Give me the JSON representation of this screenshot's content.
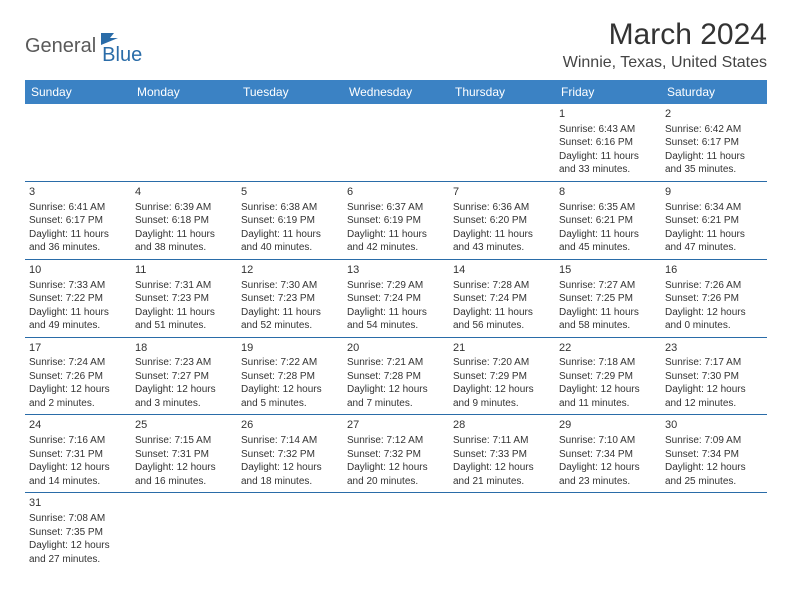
{
  "logo": {
    "general": "General",
    "blue": "Blue"
  },
  "title": "March 2024",
  "location": "Winnie, Texas, United States",
  "weekdays": [
    "Sunday",
    "Monday",
    "Tuesday",
    "Wednesday",
    "Thursday",
    "Friday",
    "Saturday"
  ],
  "colors": {
    "header_bg": "#3b82c4",
    "header_text": "#ffffff",
    "border": "#2a6ca8",
    "logo_blue": "#2a6ca8",
    "text": "#333333"
  },
  "grid": [
    [
      null,
      null,
      null,
      null,
      null,
      {
        "n": "1",
        "sr": "Sunrise: 6:43 AM",
        "ss": "Sunset: 6:16 PM",
        "d1": "Daylight: 11 hours",
        "d2": "and 33 minutes."
      },
      {
        "n": "2",
        "sr": "Sunrise: 6:42 AM",
        "ss": "Sunset: 6:17 PM",
        "d1": "Daylight: 11 hours",
        "d2": "and 35 minutes."
      }
    ],
    [
      {
        "n": "3",
        "sr": "Sunrise: 6:41 AM",
        "ss": "Sunset: 6:17 PM",
        "d1": "Daylight: 11 hours",
        "d2": "and 36 minutes."
      },
      {
        "n": "4",
        "sr": "Sunrise: 6:39 AM",
        "ss": "Sunset: 6:18 PM",
        "d1": "Daylight: 11 hours",
        "d2": "and 38 minutes."
      },
      {
        "n": "5",
        "sr": "Sunrise: 6:38 AM",
        "ss": "Sunset: 6:19 PM",
        "d1": "Daylight: 11 hours",
        "d2": "and 40 minutes."
      },
      {
        "n": "6",
        "sr": "Sunrise: 6:37 AM",
        "ss": "Sunset: 6:19 PM",
        "d1": "Daylight: 11 hours",
        "d2": "and 42 minutes."
      },
      {
        "n": "7",
        "sr": "Sunrise: 6:36 AM",
        "ss": "Sunset: 6:20 PM",
        "d1": "Daylight: 11 hours",
        "d2": "and 43 minutes."
      },
      {
        "n": "8",
        "sr": "Sunrise: 6:35 AM",
        "ss": "Sunset: 6:21 PM",
        "d1": "Daylight: 11 hours",
        "d2": "and 45 minutes."
      },
      {
        "n": "9",
        "sr": "Sunrise: 6:34 AM",
        "ss": "Sunset: 6:21 PM",
        "d1": "Daylight: 11 hours",
        "d2": "and 47 minutes."
      }
    ],
    [
      {
        "n": "10",
        "sr": "Sunrise: 7:33 AM",
        "ss": "Sunset: 7:22 PM",
        "d1": "Daylight: 11 hours",
        "d2": "and 49 minutes."
      },
      {
        "n": "11",
        "sr": "Sunrise: 7:31 AM",
        "ss": "Sunset: 7:23 PM",
        "d1": "Daylight: 11 hours",
        "d2": "and 51 minutes."
      },
      {
        "n": "12",
        "sr": "Sunrise: 7:30 AM",
        "ss": "Sunset: 7:23 PM",
        "d1": "Daylight: 11 hours",
        "d2": "and 52 minutes."
      },
      {
        "n": "13",
        "sr": "Sunrise: 7:29 AM",
        "ss": "Sunset: 7:24 PM",
        "d1": "Daylight: 11 hours",
        "d2": "and 54 minutes."
      },
      {
        "n": "14",
        "sr": "Sunrise: 7:28 AM",
        "ss": "Sunset: 7:24 PM",
        "d1": "Daylight: 11 hours",
        "d2": "and 56 minutes."
      },
      {
        "n": "15",
        "sr": "Sunrise: 7:27 AM",
        "ss": "Sunset: 7:25 PM",
        "d1": "Daylight: 11 hours",
        "d2": "and 58 minutes."
      },
      {
        "n": "16",
        "sr": "Sunrise: 7:26 AM",
        "ss": "Sunset: 7:26 PM",
        "d1": "Daylight: 12 hours",
        "d2": "and 0 minutes."
      }
    ],
    [
      {
        "n": "17",
        "sr": "Sunrise: 7:24 AM",
        "ss": "Sunset: 7:26 PM",
        "d1": "Daylight: 12 hours",
        "d2": "and 2 minutes."
      },
      {
        "n": "18",
        "sr": "Sunrise: 7:23 AM",
        "ss": "Sunset: 7:27 PM",
        "d1": "Daylight: 12 hours",
        "d2": "and 3 minutes."
      },
      {
        "n": "19",
        "sr": "Sunrise: 7:22 AM",
        "ss": "Sunset: 7:28 PM",
        "d1": "Daylight: 12 hours",
        "d2": "and 5 minutes."
      },
      {
        "n": "20",
        "sr": "Sunrise: 7:21 AM",
        "ss": "Sunset: 7:28 PM",
        "d1": "Daylight: 12 hours",
        "d2": "and 7 minutes."
      },
      {
        "n": "21",
        "sr": "Sunrise: 7:20 AM",
        "ss": "Sunset: 7:29 PM",
        "d1": "Daylight: 12 hours",
        "d2": "and 9 minutes."
      },
      {
        "n": "22",
        "sr": "Sunrise: 7:18 AM",
        "ss": "Sunset: 7:29 PM",
        "d1": "Daylight: 12 hours",
        "d2": "and 11 minutes."
      },
      {
        "n": "23",
        "sr": "Sunrise: 7:17 AM",
        "ss": "Sunset: 7:30 PM",
        "d1": "Daylight: 12 hours",
        "d2": "and 12 minutes."
      }
    ],
    [
      {
        "n": "24",
        "sr": "Sunrise: 7:16 AM",
        "ss": "Sunset: 7:31 PM",
        "d1": "Daylight: 12 hours",
        "d2": "and 14 minutes."
      },
      {
        "n": "25",
        "sr": "Sunrise: 7:15 AM",
        "ss": "Sunset: 7:31 PM",
        "d1": "Daylight: 12 hours",
        "d2": "and 16 minutes."
      },
      {
        "n": "26",
        "sr": "Sunrise: 7:14 AM",
        "ss": "Sunset: 7:32 PM",
        "d1": "Daylight: 12 hours",
        "d2": "and 18 minutes."
      },
      {
        "n": "27",
        "sr": "Sunrise: 7:12 AM",
        "ss": "Sunset: 7:32 PM",
        "d1": "Daylight: 12 hours",
        "d2": "and 20 minutes."
      },
      {
        "n": "28",
        "sr": "Sunrise: 7:11 AM",
        "ss": "Sunset: 7:33 PM",
        "d1": "Daylight: 12 hours",
        "d2": "and 21 minutes."
      },
      {
        "n": "29",
        "sr": "Sunrise: 7:10 AM",
        "ss": "Sunset: 7:34 PM",
        "d1": "Daylight: 12 hours",
        "d2": "and 23 minutes."
      },
      {
        "n": "30",
        "sr": "Sunrise: 7:09 AM",
        "ss": "Sunset: 7:34 PM",
        "d1": "Daylight: 12 hours",
        "d2": "and 25 minutes."
      }
    ],
    [
      {
        "n": "31",
        "sr": "Sunrise: 7:08 AM",
        "ss": "Sunset: 7:35 PM",
        "d1": "Daylight: 12 hours",
        "d2": "and 27 minutes."
      },
      null,
      null,
      null,
      null,
      null,
      null
    ]
  ]
}
